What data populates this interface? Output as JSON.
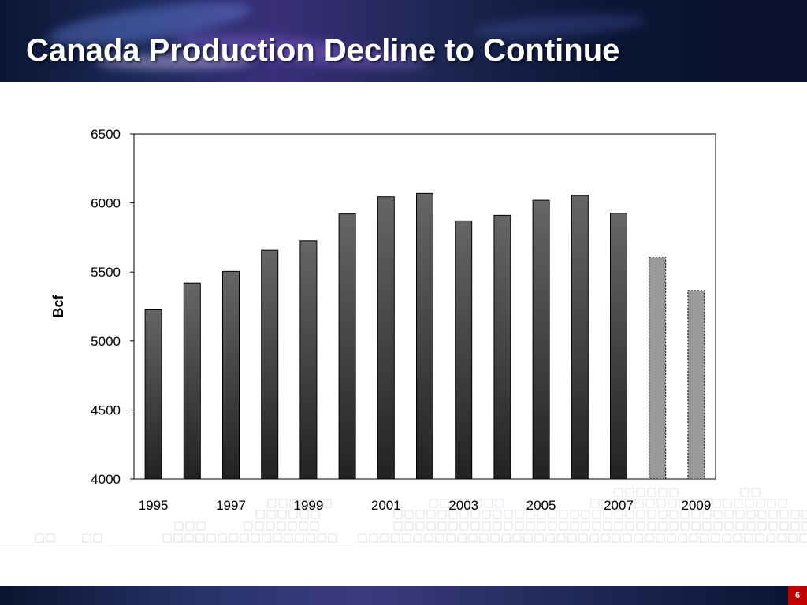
{
  "slide": {
    "title": "Canada Production Decline to Continue",
    "page_number": "6"
  },
  "colors": {
    "banner_dark": "#0c1533",
    "banner_glow": "#3a2f7a",
    "actual_bar_top": "#666666",
    "actual_bar_bottom": "#222222",
    "forecast_bar": "#9a9a9a",
    "page_badge": "#c00000"
  },
  "chart_data": {
    "type": "bar",
    "title": "",
    "xlabel": "",
    "ylabel": "Bcf",
    "ylim": [
      4000,
      6500
    ],
    "yticks": [
      "4000",
      "4500",
      "5000",
      "5500",
      "6000",
      "6500"
    ],
    "categories": [
      "1995",
      "1996",
      "1997",
      "1998",
      "1999",
      "2000",
      "2001",
      "2002",
      "2003",
      "2004",
      "2005",
      "2006",
      "2007",
      "2008",
      "2009"
    ],
    "xtick_labels": [
      "1995",
      "1997",
      "1999",
      "2001",
      "2003",
      "2005",
      "2007",
      "2009"
    ],
    "values": [
      5230,
      5420,
      5505,
      5660,
      5725,
      5920,
      6045,
      6070,
      5870,
      5910,
      6020,
      6055,
      5925,
      5605,
      5365
    ],
    "forecast_categories": [
      "2008",
      "2009"
    ],
    "grid": false,
    "legend": "none"
  }
}
